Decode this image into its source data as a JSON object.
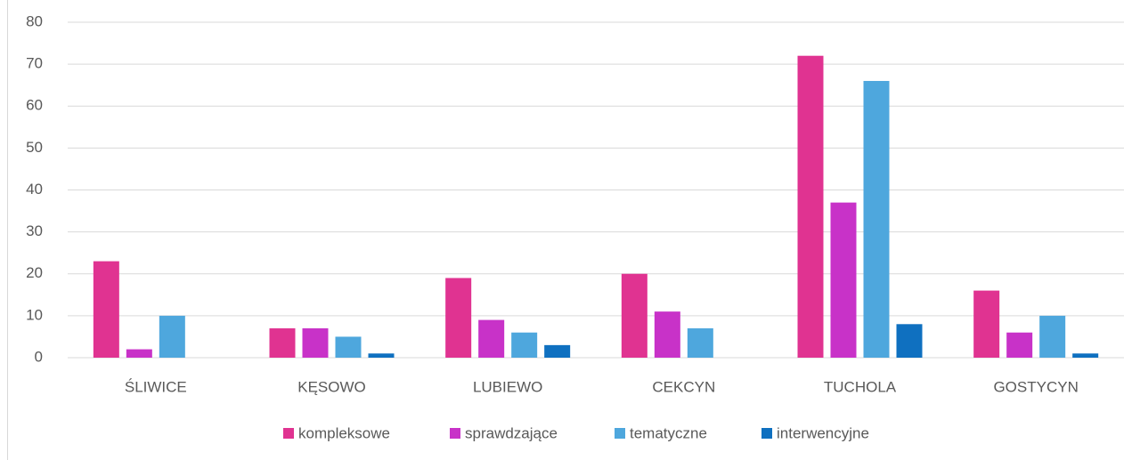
{
  "chart_data": {
    "type": "bar",
    "categories": [
      "ŚLIWICE",
      "KĘSOWO",
      "LUBIEWO",
      "CEKCYN",
      "TUCHOLA",
      "GOSTYCYN"
    ],
    "series": [
      {
        "name": "kompleksowe",
        "color": "#e03391",
        "values": [
          23,
          7,
          19,
          20,
          72,
          16
        ]
      },
      {
        "name": "sprawdzające",
        "color": "#c832c8",
        "values": [
          2,
          7,
          9,
          11,
          37,
          6
        ]
      },
      {
        "name": "tematyczne",
        "color": "#4ea7dd",
        "values": [
          10,
          5,
          6,
          7,
          66,
          10
        ]
      },
      {
        "name": "interwencyjne",
        "color": "#0f70c0",
        "values": [
          0,
          1,
          3,
          0,
          8,
          1
        ]
      }
    ],
    "ylim": [
      0,
      80
    ],
    "yticks": [
      0,
      10,
      20,
      30,
      40,
      50,
      60,
      70,
      80
    ],
    "grid": true,
    "legend": "bottom"
  }
}
